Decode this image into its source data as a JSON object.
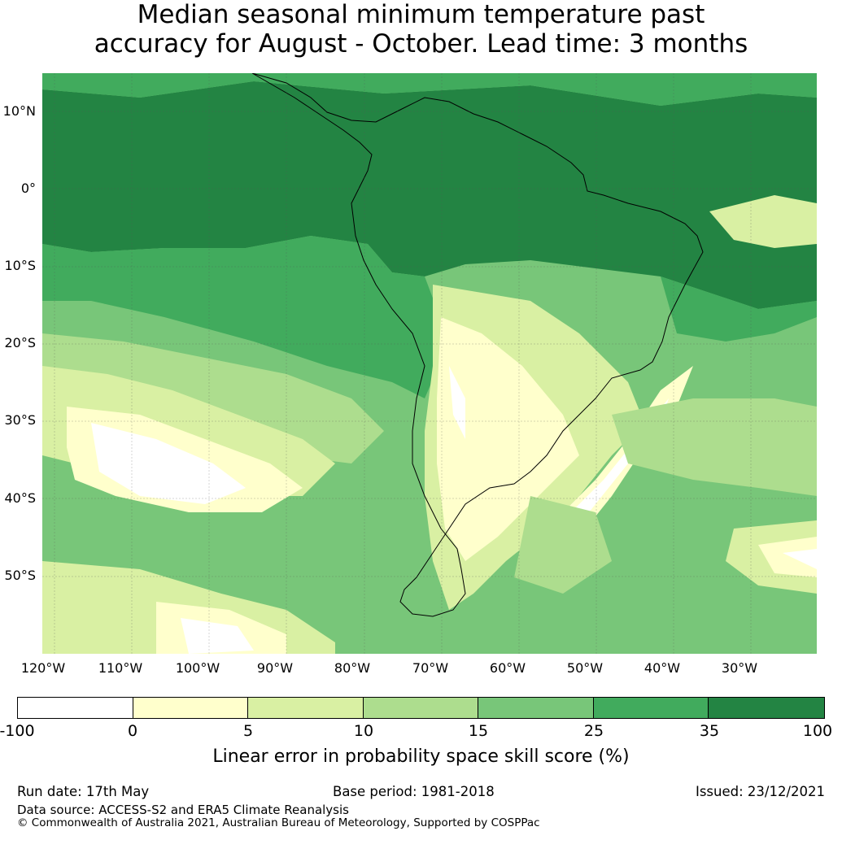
{
  "title": {
    "line1": "Median seasonal minimum temperature past",
    "line2": "accuracy for August - October. Lead time: 3 months"
  },
  "map": {
    "lat_labels": [
      "10°N",
      "0°",
      "10°S",
      "20°S",
      "30°S",
      "40°S",
      "50°S"
    ],
    "lon_labels": [
      "120°W",
      "110°W",
      "100°W",
      "90°W",
      "80°W",
      "70°W",
      "60°W",
      "50°W",
      "40°W",
      "30°W"
    ]
  },
  "colorbar": {
    "ticks": [
      "-100",
      "0",
      "5",
      "10",
      "15",
      "25",
      "35",
      "100"
    ],
    "colors": [
      "#ffffff",
      "#ffffcc",
      "#d9f0a3",
      "#addd8e",
      "#78c679",
      "#41ab5d",
      "#238443"
    ],
    "label": "Linear error in probability space skill score (%)"
  },
  "footer": {
    "run_date": "Run date: 17th May",
    "base_period": "Base period: 1981-2018",
    "issued": "Issued: 23/12/2021",
    "data_source": "Data source: ACCESS-S2 and ERA5 Climate Reanalysis",
    "copyright": "© Commonwealth of Australia 2021, Australian Bureau of Meteorology, Supported by COSPPac"
  }
}
